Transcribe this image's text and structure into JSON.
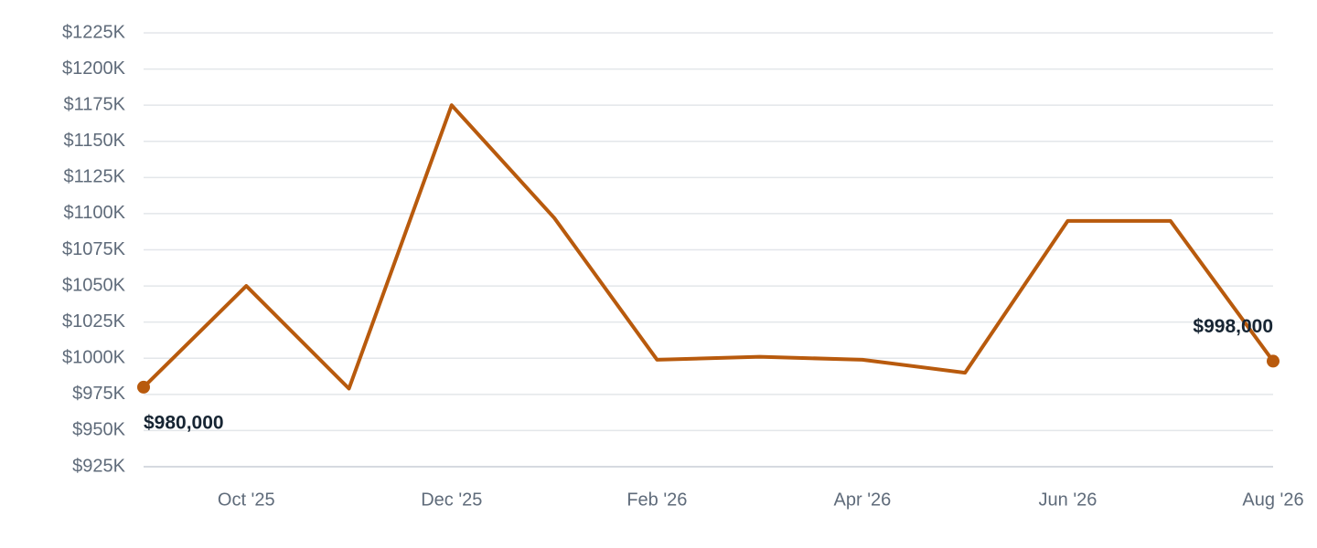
{
  "chart_data": {
    "type": "line",
    "categories": [
      null,
      "Oct '25",
      null,
      "Dec '25",
      null,
      "Feb '26",
      null,
      "Apr '26",
      null,
      "Jun '26",
      null,
      "Aug '26"
    ],
    "series": [
      {
        "color": "#b85a0d",
        "values": [
          980000,
          1050000,
          979000,
          1175000,
          1097000,
          999000,
          1001000,
          999000,
          990000,
          1095000,
          1095000,
          998000
        ],
        "value_labels": [
          "$980,000",
          null,
          null,
          null,
          null,
          null,
          null,
          null,
          null,
          null,
          null,
          "$998,000"
        ]
      }
    ],
    "ylim": [
      925000,
      1225000
    ],
    "yticks": [
      {
        "value": 925000,
        "label": "$925K"
      },
      {
        "value": 950000,
        "label": "$950K"
      },
      {
        "value": 975000,
        "label": "$975K"
      },
      {
        "value": 1000000,
        "label": "$1000K"
      },
      {
        "value": 1025000,
        "label": "$1025K"
      },
      {
        "value": 1050000,
        "label": "$1050K"
      },
      {
        "value": 1075000,
        "label": "$1075K"
      },
      {
        "value": 1100000,
        "label": "$1100K"
      },
      {
        "value": 1125000,
        "label": "$1125K"
      },
      {
        "value": 1150000,
        "label": "$1150K"
      },
      {
        "value": 1175000,
        "label": "$1175K"
      },
      {
        "value": 1200000,
        "label": "$1200K"
      },
      {
        "value": 1225000,
        "label": "$1225K"
      }
    ],
    "grid": true
  }
}
